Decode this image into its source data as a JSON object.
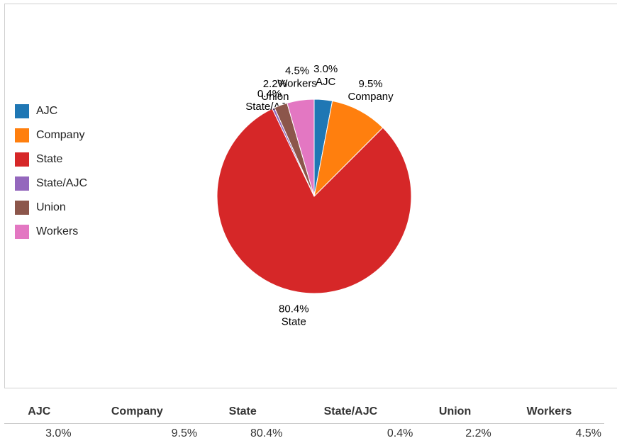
{
  "chart_data": {
    "type": "pie",
    "categories": [
      "AJC",
      "Company",
      "State",
      "State/AJC",
      "Union",
      "Workers"
    ],
    "values": [
      3.0,
      9.5,
      80.4,
      0.4,
      2.2,
      4.5
    ],
    "value_labels": [
      "3.0%",
      "9.5%",
      "80.4%",
      "0.4%",
      "2.2%",
      "4.5%"
    ],
    "colors": [
      "#1f77b4",
      "#ff7f0e",
      "#d62728",
      "#9467bd",
      "#8c564b",
      "#e377c2"
    ],
    "legend_position": "left",
    "title": ""
  },
  "table": {
    "headers": [
      "AJC",
      "Company",
      "State",
      "State/AJC",
      "Union",
      "Workers"
    ],
    "values": [
      "3.0%",
      "9.5%",
      "80.4%",
      "0.4%",
      "2.2%",
      "4.5%"
    ]
  }
}
